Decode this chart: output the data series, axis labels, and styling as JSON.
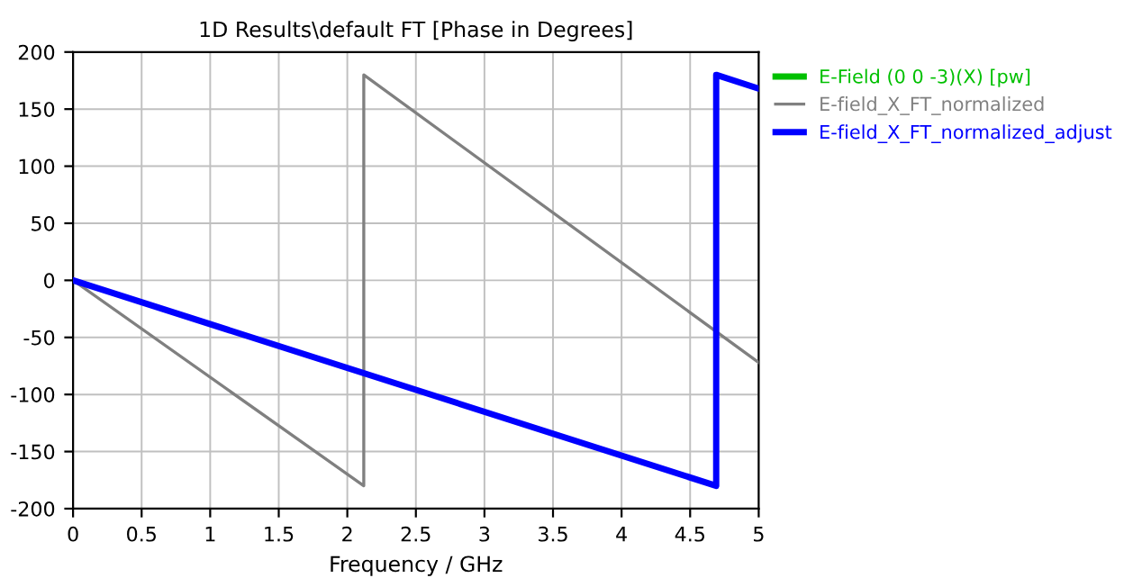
{
  "chart_data": {
    "type": "line",
    "title": "1D Results\\default FT [Phase in Degrees]",
    "xlabel": "Frequency / GHz",
    "xlim": [
      0,
      5
    ],
    "xticks": [
      0,
      0.5,
      1,
      1.5,
      2,
      2.5,
      3,
      3.5,
      4,
      4.5,
      5
    ],
    "ylim": [
      -200,
      200
    ],
    "yticks": [
      -200,
      -150,
      -100,
      -50,
      0,
      50,
      100,
      150,
      200
    ],
    "grid": true,
    "legend": "top right",
    "line_style": "solid",
    "marker": "none",
    "series": [
      {
        "name": "E-Field (0 0 -3)(X) [pw]",
        "color": "#00c000",
        "values": [
          null,
          null,
          null,
          null
        ]
      },
      {
        "name": "E-field_X_FT_normalized",
        "color": "#808080",
        "x": [
          0,
          2.12,
          2.12,
          5
        ],
        "values": [
          0,
          -180,
          180,
          -72
        ]
      },
      {
        "name": "E-field_X_FT_normalized_adjust",
        "color": "#0000ff",
        "x": [
          0,
          4.69,
          4.69,
          5
        ],
        "values": [
          0,
          -180,
          180,
          168
        ]
      }
    ]
  }
}
